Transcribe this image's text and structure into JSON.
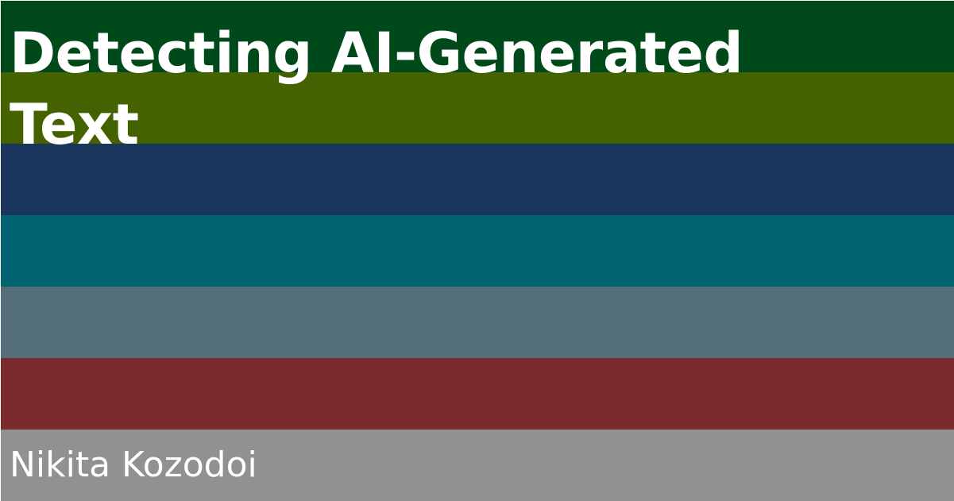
{
  "title_lines": [
    "Detecting AI-Generated",
    "Text"
  ],
  "author": "Nikita Kozodoi",
  "colors": {
    "stripes": [
      "#00491a",
      "#456200",
      "#1b365d",
      "#006470",
      "#546e7a",
      "#7b2a2e",
      "#919191"
    ],
    "text": "#ffffff"
  }
}
